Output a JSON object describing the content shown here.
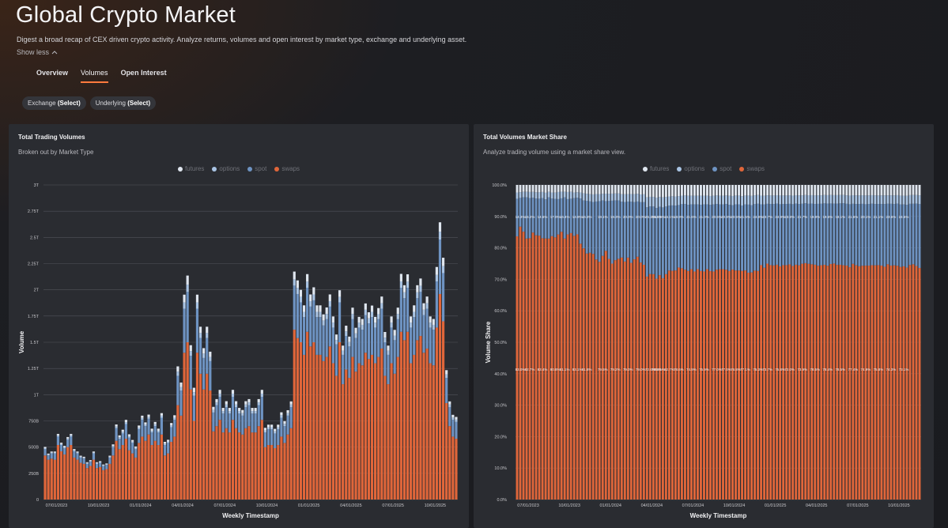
{
  "header": {
    "title": "Global Crypto Market",
    "description": "Digest a broad recap of CEX driven crypto activity. Analyze returns, volumes and open interest by market type, exchange and underlying asset.",
    "show_less": "Show less"
  },
  "tabs": [
    {
      "label": "Overview"
    },
    {
      "label": "Volumes"
    },
    {
      "label": "Open Interest"
    }
  ],
  "filters": {
    "exchange_label": "Exchange",
    "exchange_value": "(Select)",
    "underlying_label": "Underlying",
    "underlying_value": "(Select)"
  },
  "colors": {
    "futures": "#dfe6ef",
    "options": "#a9c4e4",
    "spot": "#6e93c2",
    "swaps": "#e0663a"
  },
  "legend": {
    "futures": "futures",
    "options": "options",
    "spot": "spot",
    "swaps": "swaps"
  },
  "left_panel": {
    "title": "Total Trading Volumes",
    "subtitle": "Broken out by Market Type"
  },
  "right_panel": {
    "title": "Total Volumes Market Share",
    "subtitle": "Analyze trading volume using a market share view."
  },
  "chart_data": [
    {
      "type": "bar",
      "stacked": true,
      "title": "Total Trading Volumes",
      "xlabel": "Weekly Timestamp",
      "ylabel": "Volume",
      "y_ticks": [
        "0",
        "250B",
        "500B",
        "750B",
        "1T",
        "1.25T",
        "1.5T",
        "1.75T",
        "2T",
        "2.25T",
        "2.5T",
        "2.75T",
        "3T"
      ],
      "ylim": [
        0,
        3000
      ],
      "unit": "billions",
      "x_ticks": [
        "07/01/2023",
        "10/01/2023",
        "01/01/2024",
        "04/01/2024",
        "07/01/2024",
        "10/01/2024",
        "01/01/2025",
        "04/01/2025",
        "07/01/2025",
        "10/01/2025"
      ],
      "x_tick_positions": [
        4,
        17,
        30,
        43,
        56,
        69,
        82,
        95,
        108,
        121
      ],
      "n_weeks": 128,
      "swaps": [
        420,
        380,
        390,
        380,
        520,
        460,
        430,
        500,
        520,
        400,
        380,
        350,
        340,
        300,
        320,
        380,
        300,
        310,
        280,
        290,
        340,
        420,
        560,
        480,
        520,
        580,
        470,
        440,
        400,
        540,
        600,
        560,
        620,
        520,
        560,
        520,
        620,
        420,
        440,
        550,
        600,
        900,
        800,
        1400,
        1500,
        1050,
        750,
        1400,
        1200,
        1050,
        1200,
        1040,
        650,
        700,
        760,
        640,
        680,
        640,
        760,
        680,
        640,
        620,
        680,
        700,
        640,
        640,
        700,
        760,
        500,
        520,
        520,
        490,
        520,
        600,
        540,
        620,
        680,
        1620,
        1540,
        1500,
        1380,
        1600,
        1460,
        1500,
        1380,
        1380,
        1320,
        1360,
        1460,
        1300,
        1180,
        1500,
        1100,
        1240,
        1160,
        1360,
        1220,
        1300,
        1280,
        1400,
        1340,
        1380,
        1300,
        1360,
        1440,
        1180,
        1100,
        1300,
        1200,
        1360,
        1600,
        1520,
        1600,
        1300,
        1380,
        1520,
        1560,
        1400,
        1440,
        1300,
        1280,
        1640,
        1960,
        1700,
        920,
        700,
        600,
        580
      ],
      "spot": [
        60,
        40,
        50,
        60,
        80,
        60,
        60,
        70,
        80,
        60,
        60,
        50,
        50,
        40,
        40,
        60,
        40,
        40,
        40,
        40,
        60,
        80,
        120,
        100,
        110,
        140,
        120,
        100,
        80,
        130,
        160,
        140,
        150,
        120,
        140,
        120,
        160,
        100,
        100,
        140,
        160,
        280,
        240,
        420,
        480,
        320,
        240,
        420,
        340,
        300,
        340,
        280,
        180,
        200,
        220,
        180,
        200,
        180,
        220,
        200,
        180,
        180,
        200,
        200,
        180,
        180,
        200,
        220,
        140,
        150,
        150,
        140,
        150,
        180,
        160,
        180,
        200,
        420,
        420,
        380,
        360,
        420,
        380,
        400,
        360,
        360,
        340,
        360,
        380,
        340,
        300,
        380,
        280,
        320,
        300,
        360,
        320,
        340,
        340,
        360,
        340,
        360,
        340,
        360,
        380,
        320,
        280,
        340,
        320,
        360,
        420,
        400,
        420,
        340,
        360,
        400,
        420,
        360,
        380,
        340,
        340,
        440,
        520,
        460,
        240,
        180,
        160,
        160
      ],
      "options": [
        10,
        8,
        8,
        8,
        12,
        10,
        10,
        12,
        12,
        10,
        8,
        8,
        8,
        8,
        8,
        8,
        8,
        8,
        6,
        6,
        8,
        12,
        16,
        14,
        16,
        18,
        14,
        12,
        12,
        16,
        18,
        16,
        18,
        16,
        18,
        16,
        20,
        14,
        14,
        18,
        20,
        40,
        34,
        60,
        70,
        46,
        34,
        60,
        48,
        42,
        48,
        40,
        24,
        26,
        30,
        24,
        26,
        24,
        30,
        26,
        24,
        24,
        26,
        26,
        24,
        24,
        26,
        30,
        20,
        20,
        20,
        20,
        20,
        24,
        22,
        24,
        26,
        60,
        58,
        54,
        50,
        58,
        52,
        56,
        50,
        50,
        48,
        50,
        52,
        48,
        42,
        52,
        40,
        44,
        42,
        50,
        44,
        46,
        46,
        50,
        48,
        50,
        46,
        48,
        52,
        44,
        40,
        48,
        44,
        50,
        60,
        56,
        58,
        48,
        50,
        56,
        58,
        50,
        52,
        48,
        46,
        62,
        74,
        66,
        34,
        26,
        22,
        22
      ],
      "futures": [
        12,
        10,
        10,
        10,
        14,
        12,
        12,
        14,
        14,
        12,
        10,
        10,
        10,
        8,
        8,
        10,
        8,
        8,
        8,
        8,
        10,
        14,
        20,
        18,
        20,
        22,
        18,
        16,
        14,
        20,
        22,
        20,
        22,
        20,
        22,
        20,
        24,
        16,
        16,
        22,
        24,
        50,
        42,
        74,
        86,
        56,
        42,
        74,
        60,
        52,
        60,
        50,
        30,
        32,
        36,
        30,
        32,
        30,
        36,
        32,
        30,
        30,
        32,
        32,
        30,
        30,
        32,
        36,
        24,
        24,
        24,
        24,
        24,
        28,
        26,
        28,
        30,
        74,
        72,
        66,
        62,
        72,
        64,
        68,
        62,
        62,
        58,
        62,
        64,
        58,
        52,
        64,
        48,
        54,
        52,
        60,
        54,
        56,
        56,
        60,
        58,
        60,
        56,
        58,
        64,
        54,
        48,
        58,
        54,
        60,
        72,
        68,
        70,
        58,
        62,
        68,
        70,
        62,
        64,
        58,
        56,
        76,
        90,
        80,
        40,
        30,
        26,
        26
      ]
    },
    {
      "type": "bar",
      "stacked": true,
      "normalized": true,
      "title": "Total Volumes Market Share",
      "xlabel": "Weekly Timestamp",
      "ylabel": "Volume Share",
      "y_ticks": [
        "0.0%",
        "10.0%",
        "20.0%",
        "30.0%",
        "40.0%",
        "50.0%",
        "60.0%",
        "70.0%",
        "80.0%",
        "90.0%",
        "100.0%"
      ],
      "ylim": [
        0,
        100
      ],
      "x_ticks": [
        "07/01/2023",
        "10/01/2023",
        "01/01/2024",
        "04/01/2024",
        "07/01/2024",
        "10/01/2024",
        "01/01/2025",
        "04/01/2025",
        "07/01/2025",
        "10/01/2025"
      ],
      "x_tick_positions": [
        4,
        17,
        30,
        43,
        56,
        69,
        82,
        95,
        108,
        121
      ],
      "n_weeks": 128,
      "swaps_share_labels": [
        {
          "week": 1,
          "label": "83.0%"
        },
        {
          "week": 4,
          "label": "82.7%"
        },
        {
          "week": 8,
          "label": "83.4%"
        },
        {
          "week": 12,
          "label": "80.8%"
        },
        {
          "week": 15,
          "label": "81.1%"
        },
        {
          "week": 19,
          "label": "83.1%"
        },
        {
          "week": 22,
          "label": "81.8%"
        },
        {
          "week": 27,
          "label": "79.5%"
        },
        {
          "week": 31,
          "label": "79.2%"
        },
        {
          "week": 35,
          "label": "79.0%"
        },
        {
          "week": 39,
          "label": "79.0%"
        },
        {
          "week": 42,
          "label": "72.6%"
        },
        {
          "week": 44,
          "label": "77.9%"
        },
        {
          "week": 45,
          "label": "83.5%"
        },
        {
          "week": 48,
          "label": "82.7%"
        },
        {
          "week": 51,
          "label": "78.6%"
        },
        {
          "week": 55,
          "label": "74.9%"
        },
        {
          "week": 59,
          "label": "75.9%"
        },
        {
          "week": 63,
          "label": "77.0%"
        },
        {
          "week": 66,
          "label": "77.0%"
        },
        {
          "week": 69,
          "label": "76.8%"
        },
        {
          "week": 72,
          "label": "77.1%"
        },
        {
          "week": 76,
          "label": "75.3%"
        },
        {
          "week": 79,
          "label": "73.7%"
        },
        {
          "week": 83,
          "label": "75.8%"
        },
        {
          "week": 86,
          "label": "72.0%"
        },
        {
          "week": 90,
          "label": "73.9%"
        },
        {
          "week": 94,
          "label": "78.5%"
        },
        {
          "week": 98,
          "label": "78.4%"
        },
        {
          "week": 102,
          "label": "78.5%"
        },
        {
          "week": 106,
          "label": "77.4%"
        },
        {
          "week": 110,
          "label": "74.9%"
        },
        {
          "week": 114,
          "label": "75.8%"
        },
        {
          "week": 118,
          "label": "74.3%"
        },
        {
          "week": 122,
          "label": "73.1%"
        }
      ],
      "spot_share_labels": [
        {
          "week": 1,
          "label": "14.3%"
        },
        {
          "week": 4,
          "label": "15.2%"
        },
        {
          "week": 8,
          "label": "14.6%"
        },
        {
          "week": 12,
          "label": "17.0%"
        },
        {
          "week": 15,
          "label": "16.4%"
        },
        {
          "week": 19,
          "label": "14.9%"
        },
        {
          "week": 22,
          "label": "16.3%"
        },
        {
          "week": 27,
          "label": "19.1%"
        },
        {
          "week": 31,
          "label": "19.3%"
        },
        {
          "week": 35,
          "label": "20.0%"
        },
        {
          "week": 39,
          "label": "20.0%"
        },
        {
          "week": 42,
          "label": "25.2%"
        },
        {
          "week": 44,
          "label": "20.4%"
        },
        {
          "week": 45,
          "label": "14.9%"
        },
        {
          "week": 48,
          "label": "16.1%"
        },
        {
          "week": 51,
          "label": "18.9%"
        },
        {
          "week": 55,
          "label": "21.6%"
        },
        {
          "week": 59,
          "label": "21.0%"
        },
        {
          "week": 63,
          "label": "20.6%"
        },
        {
          "week": 66,
          "label": "20.8%"
        },
        {
          "week": 69,
          "label": "20.5%"
        },
        {
          "week": 72,
          "label": "21.5%"
        },
        {
          "week": 76,
          "label": "24.8%"
        },
        {
          "week": 79,
          "label": "23.7%"
        },
        {
          "week": 83,
          "label": "24.9%"
        },
        {
          "week": 86,
          "label": "23.8%"
        },
        {
          "week": 90,
          "label": "21.7%"
        },
        {
          "week": 94,
          "label": "19.8%"
        },
        {
          "week": 98,
          "label": "19.5%"
        },
        {
          "week": 102,
          "label": "18.1%"
        },
        {
          "week": 106,
          "label": "21.6%"
        },
        {
          "week": 110,
          "label": "20.1%"
        },
        {
          "week": 114,
          "label": "21.1%"
        },
        {
          "week": 118,
          "label": "23.6%"
        },
        {
          "week": 122,
          "label": "24.6%"
        }
      ]
    }
  ]
}
